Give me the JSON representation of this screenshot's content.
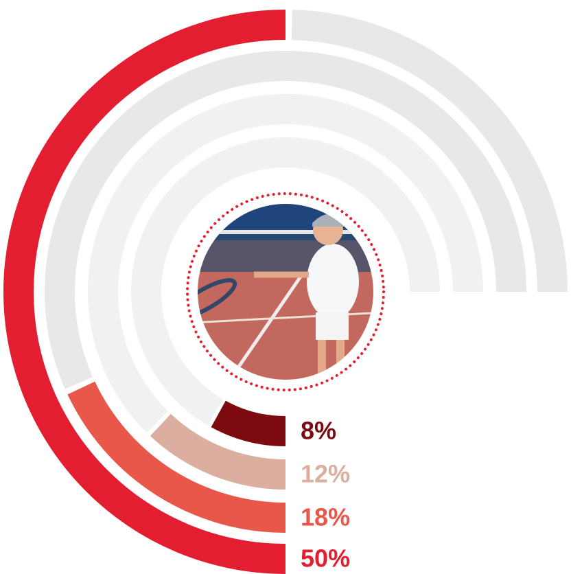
{
  "chart_data": {
    "type": "radial_bar",
    "values": [
      50,
      18,
      12,
      8
    ],
    "value_labels": [
      "50%",
      "18%",
      "12%",
      "8%"
    ],
    "colors": [
      "#e31e30",
      "#e8574a",
      "#dcaea0",
      "#7d0a10"
    ],
    "lim": [
      0,
      100
    ]
  }
}
